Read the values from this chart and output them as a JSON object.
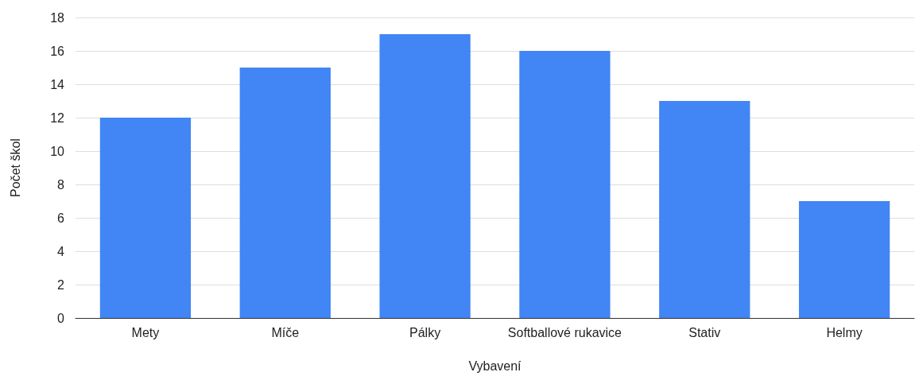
{
  "chart_data": {
    "type": "bar",
    "xlabel": "Vybavení",
    "ylabel": "Počet škol",
    "categories": [
      "Mety",
      "Míče",
      "Pálky",
      "Softballové rukavice",
      "Stativ",
      "Helmy"
    ],
    "values": [
      12,
      15,
      17,
      16,
      13,
      7
    ],
    "color": "#4285f4",
    "ylim": [
      0,
      18
    ],
    "yticks": [
      0,
      2,
      4,
      6,
      8,
      10,
      12,
      14,
      16,
      18
    ],
    "grid": "y"
  }
}
